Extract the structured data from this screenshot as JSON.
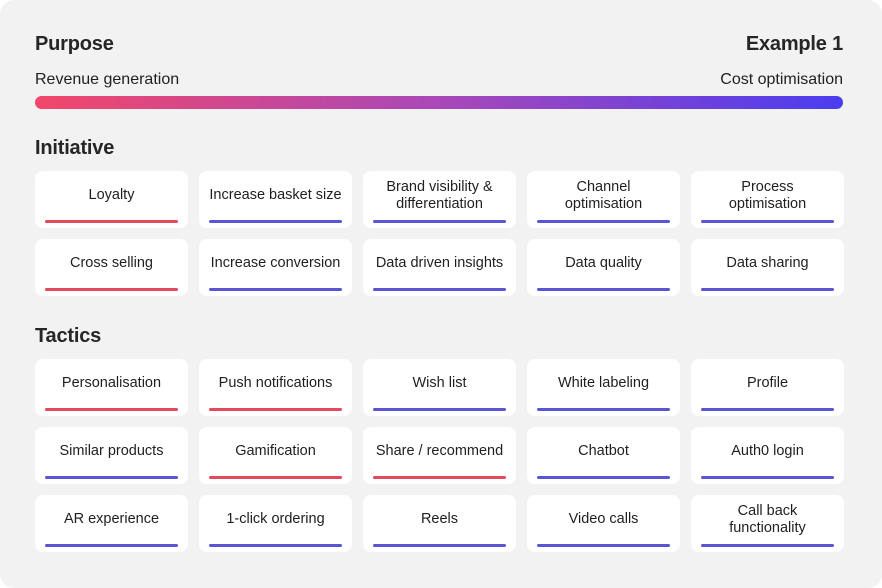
{
  "header": {
    "title": "Purpose",
    "example": "Example 1"
  },
  "scale": {
    "left_label": "Revenue generation",
    "right_label": "Cost optimisation",
    "gradient_start": "#f2476a",
    "gradient_mid": "#a948b8",
    "gradient_end": "#4a3df0"
  },
  "colors": {
    "revenue": "#e8485e",
    "cost": "#5b55d6"
  },
  "initiative": {
    "title": "Initiative",
    "items": [
      {
        "label": "Loyalty",
        "type": "revenue"
      },
      {
        "label": "Increase basket size",
        "type": "cost"
      },
      {
        "label": "Brand visibility & differentiation",
        "type": "cost"
      },
      {
        "label": "Channel optimisation",
        "type": "cost"
      },
      {
        "label": "Process optimisation",
        "type": "cost"
      },
      {
        "label": "Cross selling",
        "type": "revenue"
      },
      {
        "label": "Increase conversion",
        "type": "cost"
      },
      {
        "label": "Data driven insights",
        "type": "cost"
      },
      {
        "label": "Data quality",
        "type": "cost"
      },
      {
        "label": "Data sharing",
        "type": "cost"
      }
    ]
  },
  "tactics": {
    "title": "Tactics",
    "items": [
      {
        "label": "Personalisation",
        "type": "revenue"
      },
      {
        "label": "Push notifications",
        "type": "revenue"
      },
      {
        "label": "Wish list",
        "type": "cost"
      },
      {
        "label": "White labeling",
        "type": "cost"
      },
      {
        "label": "Profile",
        "type": "cost"
      },
      {
        "label": "Similar products",
        "type": "cost"
      },
      {
        "label": "Gamification",
        "type": "revenue"
      },
      {
        "label": "Share / recommend",
        "type": "revenue"
      },
      {
        "label": "Chatbot",
        "type": "cost"
      },
      {
        "label": "Auth0 login",
        "type": "cost"
      },
      {
        "label": "AR experience",
        "type": "cost"
      },
      {
        "label": "1-click ordering",
        "type": "cost"
      },
      {
        "label": "Reels",
        "type": "cost"
      },
      {
        "label": "Video calls",
        "type": "cost"
      },
      {
        "label": "Call back functionality",
        "type": "cost"
      }
    ]
  }
}
